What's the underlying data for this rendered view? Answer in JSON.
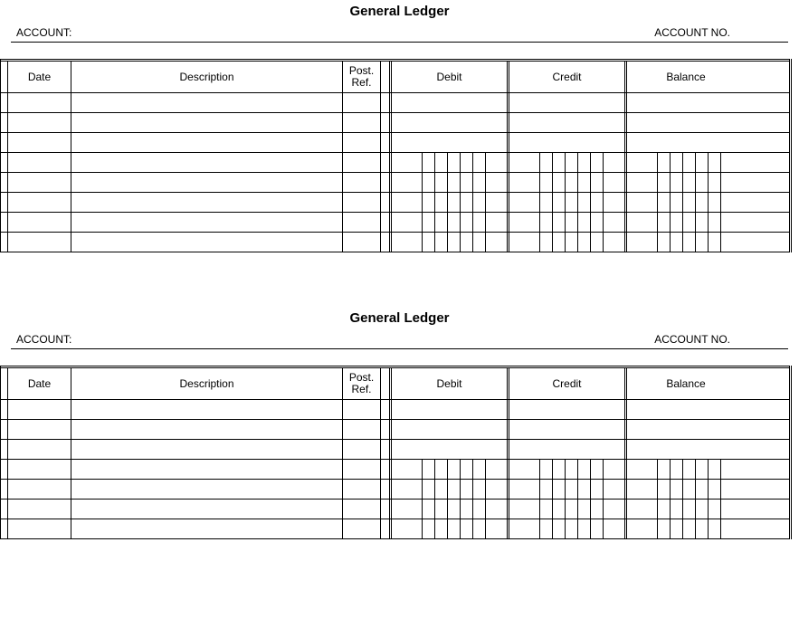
{
  "ledgers": [
    {
      "title": "General Ledger",
      "account_label": "ACCOUNT:",
      "account_no_label": "ACCOUNT NO.",
      "columns": {
        "date": "Date",
        "description": "Description",
        "post_ref": "Post. Ref.",
        "debit": "Debit",
        "credit": "Credit",
        "balance": "Balance"
      },
      "body_rows": 8,
      "rows_with_subcolumns": [
        3,
        4,
        5,
        6,
        7
      ],
      "num_subcolumns": {
        "wide": 1,
        "narrow": 5,
        "trailing": 1
      },
      "colors": {
        "line": "#000000",
        "background": "#ffffff",
        "text": "#000000"
      },
      "fonts": {
        "title_size_pt": 11,
        "header_size_pt": 9,
        "weight_title": "bold"
      }
    },
    {
      "title": "General Ledger",
      "account_label": "ACCOUNT:",
      "account_no_label": "ACCOUNT NO.",
      "columns": {
        "date": "Date",
        "description": "Description",
        "post_ref": "Post. Ref.",
        "debit": "Debit",
        "credit": "Credit",
        "balance": "Balance"
      },
      "body_rows": 7,
      "rows_with_subcolumns": [
        3,
        4,
        5,
        6
      ],
      "num_subcolumns": {
        "wide": 1,
        "narrow": 5,
        "trailing": 1
      },
      "colors": {
        "line": "#000000",
        "background": "#ffffff",
        "text": "#000000"
      },
      "fonts": {
        "title_size_pt": 11,
        "header_size_pt": 9,
        "weight_title": "bold"
      }
    }
  ]
}
